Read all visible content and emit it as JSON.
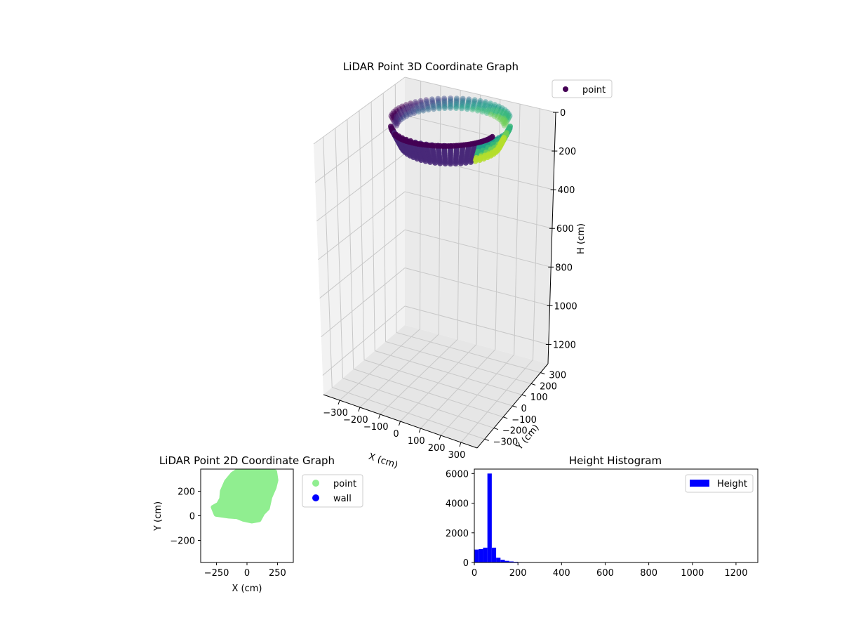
{
  "chart_data": [
    {
      "type": "scatter",
      "projection": "3d",
      "title": "LiDAR Point 3D Coordinate Graph",
      "xlabel": "X (cm)",
      "ylabel": "Y (cm)",
      "zlabel": "H (cm)",
      "xticks": [
        "−300",
        "−200",
        "−100",
        "0",
        "100",
        "200",
        "300"
      ],
      "yticks": [
        "−300",
        "−200",
        "−100",
        "0",
        "100",
        "200",
        "300"
      ],
      "zticks": [
        "0",
        "200",
        "400",
        "600",
        "800",
        "1000",
        "1200"
      ],
      "xlim": [
        -380,
        380
      ],
      "ylim": [
        -380,
        380
      ],
      "zlim": [
        0,
        1300
      ],
      "z_inverted": true,
      "colormap": "viridis",
      "legend": {
        "entries": [
          "point"
        ],
        "colors": [
          "#440154"
        ],
        "placement": "top-right"
      },
      "grid": true
    },
    {
      "type": "scatter",
      "title": "LiDAR Point 2D Coordinate Graph",
      "xlabel": "X (cm)",
      "ylabel": "Y (cm)",
      "xticks": [
        "−250",
        "0",
        "250"
      ],
      "yticks": [
        "200",
        "0",
        "−200"
      ],
      "xlim": [
        -380,
        380
      ],
      "ylim": [
        -380,
        380
      ],
      "series": [
        {
          "name": "point",
          "color": "#90ee90",
          "outline": [
            [
              -60,
              380
            ],
            [
              140,
              380
            ],
            [
              230,
              360
            ],
            [
              240,
              290
            ],
            [
              225,
              230
            ],
            [
              190,
              150
            ],
            [
              170,
              60
            ],
            [
              130,
              20
            ],
            [
              100,
              -35
            ],
            [
              40,
              -45
            ],
            [
              -30,
              -30
            ],
            [
              -80,
              -10
            ],
            [
              -150,
              -5
            ],
            [
              -255,
              10
            ],
            [
              -280,
              70
            ],
            [
              -235,
              95
            ],
            [
              -210,
              140
            ],
            [
              -205,
              200
            ],
            [
              -170,
              280
            ],
            [
              -120,
              340
            ],
            [
              -60,
              380
            ]
          ]
        },
        {
          "name": "wall",
          "color": "#0000ff",
          "points": []
        }
      ],
      "legend": {
        "placement": "outside-right"
      }
    },
    {
      "type": "bar",
      "subtype": "histogram",
      "title": "Height Histogram",
      "xticks": [
        "0",
        "200",
        "400",
        "600",
        "800",
        "1000",
        "1200"
      ],
      "yticks": [
        "0",
        "2000",
        "4000",
        "6000"
      ],
      "xlim": [
        0,
        1300
      ],
      "ylim": [
        0,
        6300
      ],
      "bin_width": 20,
      "bin_start": 0,
      "values": [
        870,
        900,
        1000,
        6000,
        1000,
        320,
        180,
        110,
        70,
        45,
        25,
        12,
        8,
        5,
        3,
        2,
        2,
        1,
        1
      ],
      "color": "#0000ff",
      "series": [
        {
          "name": "Height"
        }
      ],
      "legend": {
        "placement": "top-right"
      }
    }
  ]
}
